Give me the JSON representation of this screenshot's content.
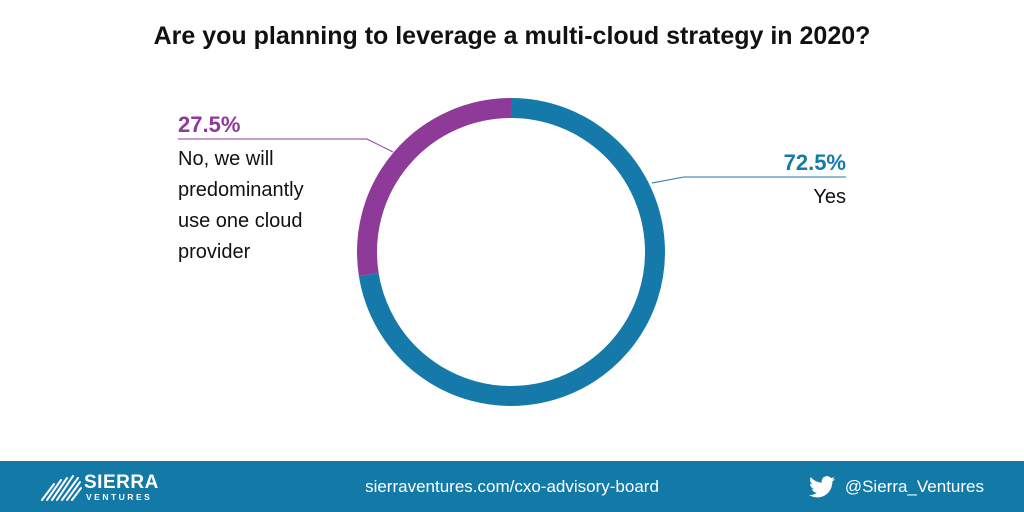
{
  "colors": {
    "yes": "#157aa9",
    "no": "#8e3a98",
    "footer": "#137aa7",
    "text": "#111111"
  },
  "chart_data": {
    "type": "pie",
    "variant": "donut",
    "title": "Are you planning to leverage a multi-cloud strategy in 2020?",
    "series": [
      {
        "label_pct": "72.5%",
        "label_lines": [
          "Yes"
        ],
        "value": 72.5,
        "color": "#157aa9"
      },
      {
        "label_pct": "27.5%",
        "label_lines": [
          "No, we will",
          "predominantly",
          "use one cloud",
          "provider"
        ],
        "value": 27.5,
        "color": "#8e3a98"
      }
    ]
  },
  "footer": {
    "logo_name": "SIERRA",
    "logo_sub": "VENTURES",
    "url": "sierraventures.com/cxo-advisory-board",
    "twitter_icon": "twitter-bird-icon",
    "twitter_handle": "@Sierra_Ventures"
  }
}
